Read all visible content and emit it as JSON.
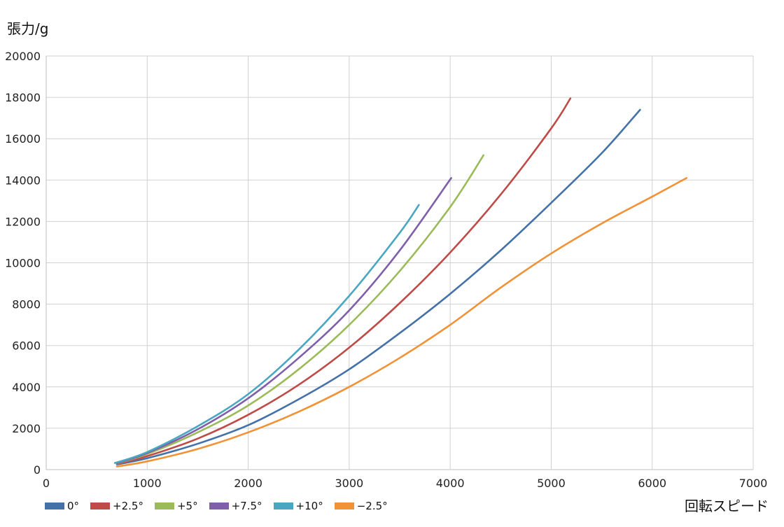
{
  "chart_data": {
    "type": "line",
    "ylabel": "張力/g",
    "xlabel": "回転スピード",
    "xlim": [
      0,
      7000
    ],
    "ylim": [
      0,
      20000
    ],
    "xticks": [
      "0",
      "1000",
      "2000",
      "3000",
      "4000",
      "5000",
      "6000",
      "7000"
    ],
    "yticks": [
      "0",
      "2000",
      "4000",
      "6000",
      "8000",
      "10000",
      "12000",
      "14000",
      "16000",
      "18000",
      "20000"
    ],
    "grid": true,
    "legend_position": "bottom-left",
    "series": [
      {
        "name": "0°",
        "color": "#4472a8",
        "x": [
          700,
          1000,
          1500,
          2000,
          2500,
          3000,
          3500,
          4000,
          4500,
          5000,
          5500,
          5880
        ],
        "y": [
          250,
          550,
          1250,
          2150,
          3400,
          4850,
          6600,
          8500,
          10600,
          12900,
          15300,
          17400
        ]
      },
      {
        "name": "+2.5°",
        "color": "#be4b48",
        "x": [
          700,
          1000,
          1500,
          2000,
          2500,
          3000,
          3500,
          4000,
          4500,
          5000,
          5190
        ],
        "y": [
          280,
          650,
          1500,
          2650,
          4100,
          5900,
          8050,
          10500,
          13300,
          16500,
          17950
        ]
      },
      {
        "name": "+5°",
        "color": "#9bbb59",
        "x": [
          700,
          1000,
          1500,
          2000,
          2500,
          3000,
          3500,
          4000,
          4330
        ],
        "y": [
          300,
          750,
          1800,
          3100,
          4850,
          7000,
          9600,
          12700,
          15200
        ]
      },
      {
        "name": "+7.5°",
        "color": "#7f5fa9",
        "x": [
          700,
          1000,
          1500,
          2000,
          2500,
          3000,
          3500,
          4010
        ],
        "y": [
          310,
          800,
          1950,
          3450,
          5400,
          7700,
          10600,
          14100
        ]
      },
      {
        "name": "+10°",
        "color": "#4aa7c1",
        "x": [
          680,
          1000,
          1500,
          2000,
          2500,
          3000,
          3500,
          3690
        ],
        "y": [
          320,
          850,
          2100,
          3650,
          5800,
          8400,
          11450,
          12800
        ]
      },
      {
        "name": "−2.5°",
        "color": "#f19237",
        "x": [
          700,
          1000,
          1500,
          2000,
          2500,
          3000,
          3500,
          4000,
          4500,
          5000,
          5500,
          6000,
          6340
        ],
        "y": [
          150,
          400,
          1000,
          1800,
          2800,
          4000,
          5400,
          7000,
          8800,
          10450,
          11900,
          13200,
          14100
        ]
      }
    ]
  }
}
